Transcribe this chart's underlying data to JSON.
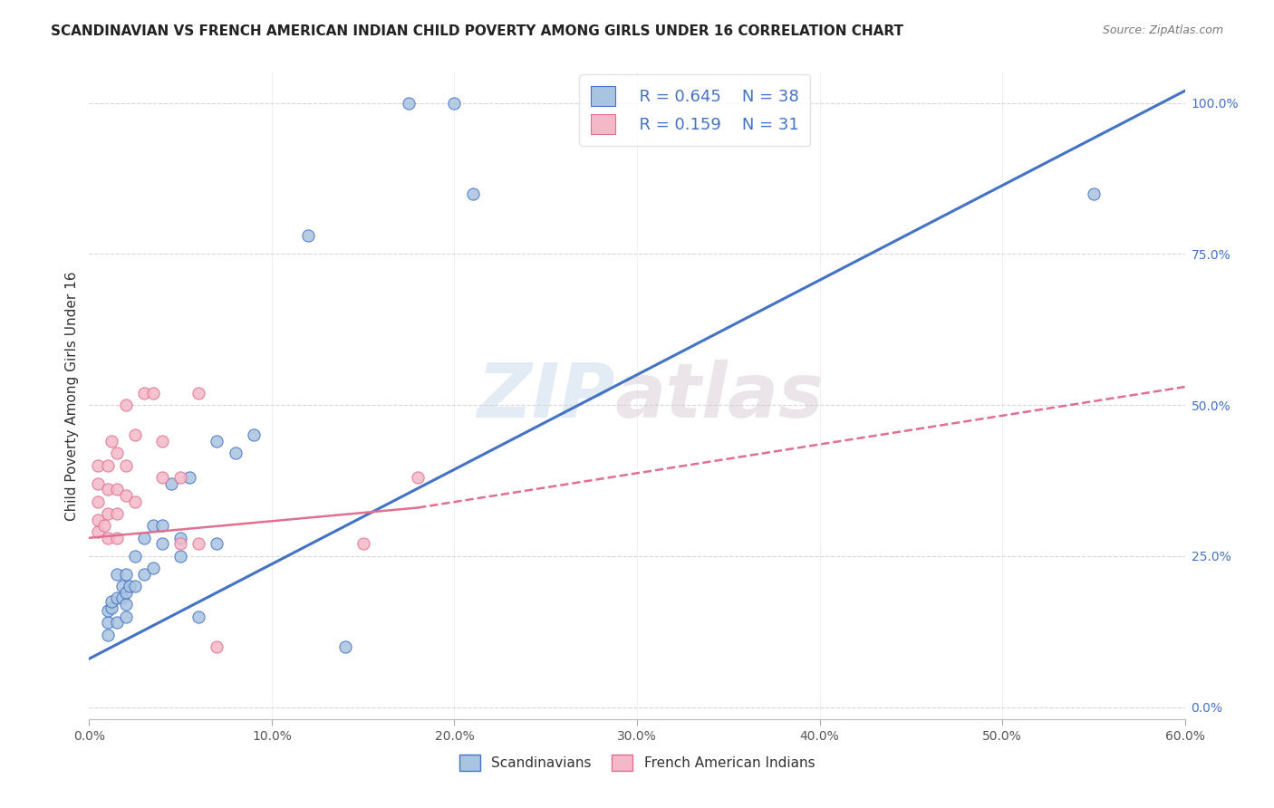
{
  "title": "SCANDINAVIAN VS FRENCH AMERICAN INDIAN CHILD POVERTY AMONG GIRLS UNDER 16 CORRELATION CHART",
  "source": "Source: ZipAtlas.com",
  "ylabel": "Child Poverty Among Girls Under 16",
  "xlim": [
    0.0,
    60.0
  ],
  "ylim": [
    -2.0,
    105.0
  ],
  "x_ticks": [
    0.0,
    10.0,
    20.0,
    30.0,
    40.0,
    50.0,
    60.0
  ],
  "x_tick_labels": [
    "0.0%",
    "10.0%",
    "20.0%",
    "30.0%",
    "40.0%",
    "50.0%",
    "60.0%"
  ],
  "y_ticks_right": [
    0.0,
    25.0,
    50.0,
    75.0,
    100.0
  ],
  "y_tick_labels_right": [
    "0.0%",
    "25.0%",
    "50.0%",
    "75.0%",
    "100.0%"
  ],
  "legend_r1": "R = 0.645",
  "legend_n1": "N = 38",
  "legend_r2": "R = 0.159",
  "legend_n2": "N = 31",
  "blue_fill": "#a8c4e0",
  "blue_edge": "#4472c4",
  "pink_fill": "#f4b8c8",
  "pink_edge": "#e07090",
  "scandinavians_x": [
    1.0,
    1.0,
    1.0,
    1.2,
    1.2,
    1.5,
    1.5,
    1.5,
    1.8,
    1.8,
    2.0,
    2.0,
    2.0,
    2.0,
    2.2,
    2.5,
    2.5,
    3.0,
    3.0,
    3.5,
    3.5,
    4.0,
    4.0,
    4.5,
    5.0,
    5.0,
    5.5,
    6.0,
    7.0,
    7.0,
    8.0,
    9.0,
    12.0,
    14.0,
    17.5,
    20.0,
    21.0,
    55.0
  ],
  "scandinavians_y": [
    12.0,
    14.0,
    16.0,
    16.5,
    17.5,
    14.0,
    18.0,
    22.0,
    18.0,
    20.0,
    15.0,
    17.0,
    19.0,
    22.0,
    20.0,
    20.0,
    25.0,
    22.0,
    28.0,
    23.0,
    30.0,
    27.0,
    30.0,
    37.0,
    25.0,
    28.0,
    38.0,
    15.0,
    27.0,
    44.0,
    42.0,
    45.0,
    78.0,
    10.0,
    100.0,
    100.0,
    85.0,
    85.0
  ],
  "french_x": [
    0.5,
    0.5,
    0.5,
    0.5,
    0.5,
    0.8,
    1.0,
    1.0,
    1.0,
    1.0,
    1.2,
    1.5,
    1.5,
    1.5,
    1.5,
    2.0,
    2.0,
    2.0,
    2.5,
    2.5,
    3.0,
    3.5,
    4.0,
    4.0,
    5.0,
    5.0,
    6.0,
    6.0,
    7.0,
    15.0,
    18.0
  ],
  "french_y": [
    29.0,
    31.0,
    34.0,
    37.0,
    40.0,
    30.0,
    28.0,
    32.0,
    36.0,
    40.0,
    44.0,
    28.0,
    32.0,
    36.0,
    42.0,
    35.0,
    40.0,
    50.0,
    34.0,
    45.0,
    52.0,
    52.0,
    38.0,
    44.0,
    27.0,
    38.0,
    27.0,
    52.0,
    10.0,
    27.0,
    38.0
  ],
  "blue_trend_x0": 0.0,
  "blue_trend_y0": 8.0,
  "blue_trend_x1": 60.0,
  "blue_trend_y1": 102.0,
  "pink_trend_x0": 0.0,
  "pink_trend_y0": 28.0,
  "pink_trend_x1": 55.0,
  "pink_trend_y1": 46.0,
  "pink_trend_dash_x0": 18.0,
  "pink_trend_dash_x1": 60.0,
  "pink_trend_dash_y0": 33.0,
  "pink_trend_dash_y1": 53.0
}
